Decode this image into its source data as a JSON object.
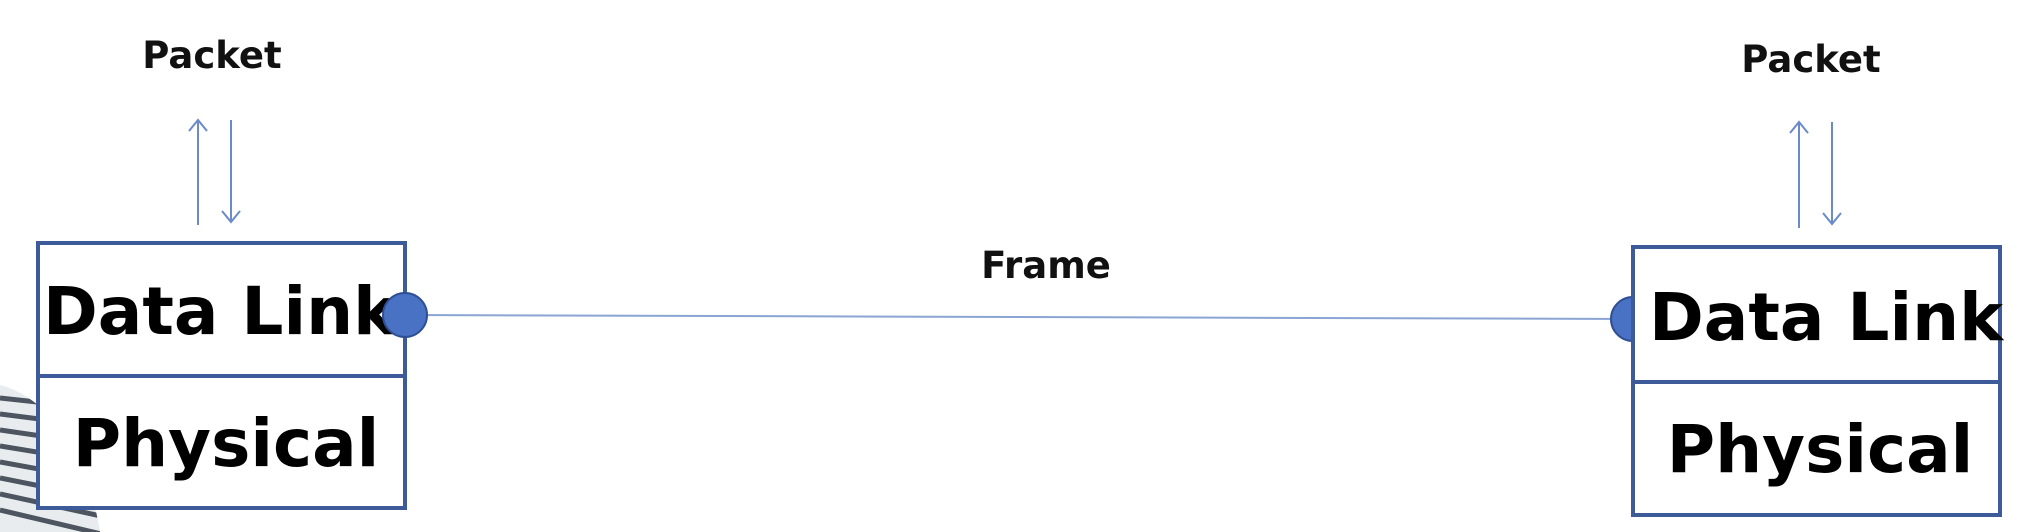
{
  "diagram": {
    "left_host": {
      "packet_label": "Packet",
      "data_link_label": "Data Link",
      "physical_label": "Physical"
    },
    "right_host": {
      "packet_label": "Packet",
      "data_link_label": "Data Link",
      "physical_label": "Physical"
    },
    "link": {
      "frame_label": "Frame"
    }
  },
  "colors": {
    "box_stroke": "#3d5a99",
    "node_fill": "#4a72c4",
    "arrow": "#6b8bc8",
    "link_line": "#8aa4d4"
  }
}
